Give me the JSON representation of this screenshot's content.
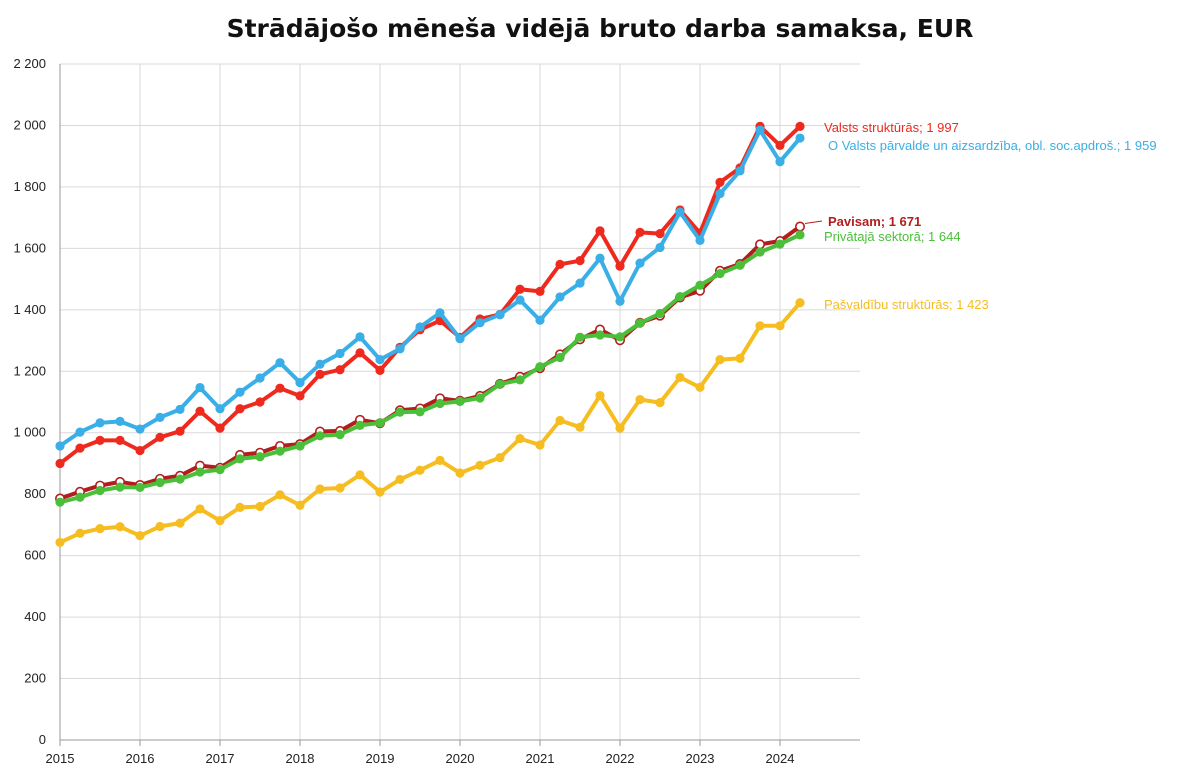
{
  "chart_data": {
    "type": "line",
    "title": "Strādājošo mēneša vidējā bruto darba samaksa, EUR",
    "xlabel": "",
    "ylabel": "",
    "ylim": [
      0,
      2200
    ],
    "xlim": [
      2015,
      2025
    ],
    "grid": true,
    "x_ticks": [
      "2015",
      "2016",
      "2017",
      "2018",
      "2019",
      "2020",
      "2021",
      "2022",
      "2023",
      "2024"
    ],
    "y_ticks": [
      "0",
      "200",
      "400",
      "600",
      "800",
      "1 000",
      "1 200",
      "1 400",
      "1 600",
      "1 800",
      "2 000",
      "2 200"
    ],
    "x": [
      2015.0,
      2015.25,
      2015.5,
      2015.75,
      2016.0,
      2016.25,
      2016.5,
      2016.75,
      2017.0,
      2017.25,
      2017.5,
      2017.75,
      2018.0,
      2018.25,
      2018.5,
      2018.75,
      2019.0,
      2019.25,
      2019.5,
      2019.75,
      2020.0,
      2020.25,
      2020.5,
      2020.75,
      2021.0,
      2021.25,
      2021.5,
      2021.75,
      2022.0,
      2022.25,
      2022.5,
      2022.75,
      2023.0,
      2023.25,
      2023.5,
      2023.75,
      2024.0,
      2024.25
    ],
    "series": [
      {
        "name": "Valsts struktūrās",
        "end_label": "Valsts struktūrās; 1 997",
        "color": "#ee2a1e",
        "marker": "filled",
        "label_bold": false,
        "values": [
          900,
          950,
          975,
          975,
          942,
          985,
          1005,
          1070,
          1015,
          1078,
          1100,
          1145,
          1120,
          1190,
          1205,
          1260,
          1203,
          1278,
          1335,
          1365,
          1310,
          1370,
          1385,
          1467,
          1460,
          1548,
          1560,
          1657,
          1542,
          1652,
          1648,
          1725,
          1650,
          1815,
          1862,
          1997,
          1935,
          1997
        ]
      },
      {
        "name": "Valsts pārvalde un aizsardzība, obl. soc.apdroš.",
        "end_label": "O Valsts pārvalde un aizsardzība, obl. soc.apdroš.; 1 959",
        "color": "#3aaee6",
        "marker": "filled",
        "label_bold": false,
        "values": [
          957,
          1002,
          1032,
          1037,
          1012,
          1050,
          1076,
          1147,
          1078,
          1132,
          1178,
          1228,
          1163,
          1223,
          1258,
          1312,
          1238,
          1273,
          1344,
          1390,
          1306,
          1358,
          1384,
          1432,
          1366,
          1442,
          1487,
          1568,
          1428,
          1552,
          1603,
          1718,
          1626,
          1778,
          1852,
          1985,
          1882,
          1959
        ]
      },
      {
        "name": "Pavisam",
        "end_label": "Pavisam; 1 671",
        "color": "#b31d1d",
        "marker": "hollow",
        "label_bold": true,
        "values": [
          786,
          808,
          828,
          840,
          830,
          850,
          860,
          893,
          886,
          928,
          935,
          957,
          963,
          1004,
          1006,
          1042,
          1031,
          1073,
          1079,
          1112,
          1104,
          1120,
          1159,
          1182,
          1210,
          1255,
          1304,
          1336,
          1301,
          1358,
          1381,
          1440,
          1462,
          1527,
          1549,
          1613,
          1624,
          1671
        ]
      },
      {
        "name": "Privātajā sektorā",
        "end_label": "Privātajā sektorā; 1 644",
        "color": "#4bbf3a",
        "marker": "filled",
        "label_bold": false,
        "values": [
          774,
          790,
          812,
          823,
          822,
          838,
          849,
          872,
          880,
          915,
          922,
          940,
          957,
          990,
          994,
          1024,
          1032,
          1067,
          1068,
          1095,
          1102,
          1113,
          1158,
          1172,
          1215,
          1245,
          1311,
          1318,
          1312,
          1357,
          1388,
          1443,
          1480,
          1518,
          1545,
          1588,
          1614,
          1644
        ]
      },
      {
        "name": "Pašvaldību struktūrās",
        "end_label": "Pašvaldību struktūrās; 1 423",
        "color": "#f6bd21",
        "marker": "filled",
        "label_bold": false,
        "values": [
          643,
          673,
          688,
          694,
          665,
          695,
          706,
          752,
          714,
          757,
          760,
          798,
          764,
          817,
          820,
          863,
          807,
          848,
          878,
          910,
          869,
          894,
          919,
          981,
          960,
          1040,
          1018,
          1121,
          1015,
          1108,
          1098,
          1180,
          1148,
          1238,
          1242,
          1348,
          1348,
          1423
        ]
      }
    ]
  }
}
